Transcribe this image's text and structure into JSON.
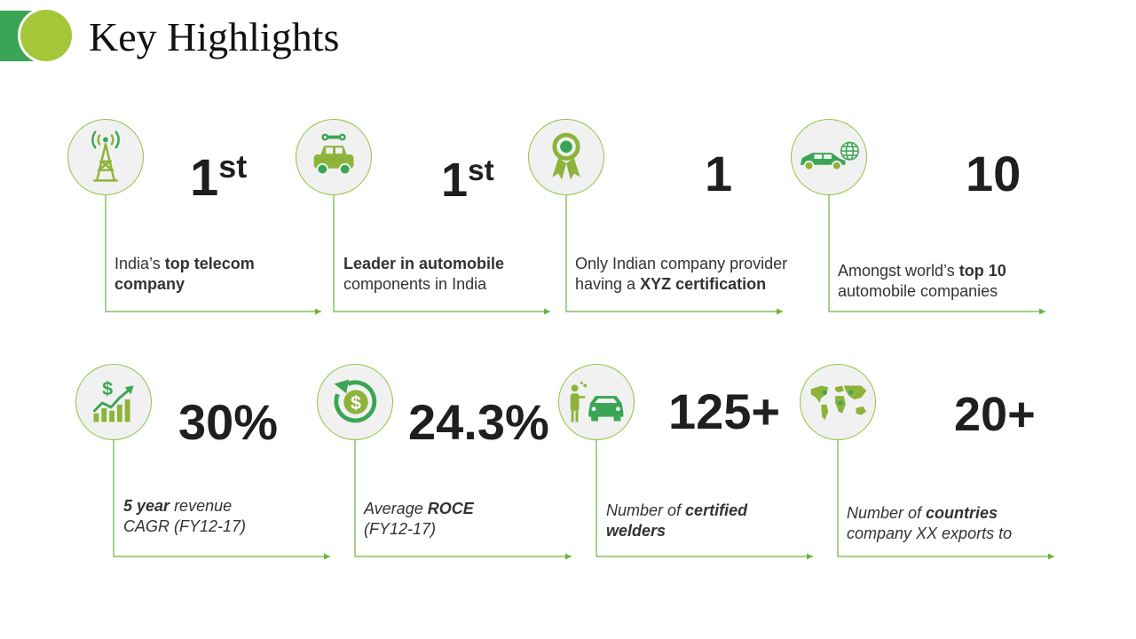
{
  "title": "Key Highlights",
  "colors": {
    "accent_dark": "#3aa655",
    "accent_light": "#a4c639",
    "line": "#6cb33f"
  },
  "highlights": [
    {
      "value": "1",
      "suffix": "st",
      "icon": "telecom-tower-icon",
      "pre": "India’s ",
      "bold": "top telecom",
      "post": "",
      "line2_bold": "company",
      "line2": ""
    },
    {
      "value": "1",
      "suffix": "st",
      "icon": "car-repair-icon",
      "pre": "",
      "bold": "Leader in automobile",
      "post": "",
      "line2_bold": "",
      "line2": "components in India"
    },
    {
      "value": "1",
      "suffix": "",
      "icon": "award-ribbon-icon",
      "pre": "Only Indian company provider",
      "bold": "",
      "post": "",
      "line2_pre": "having a ",
      "line2_bold": "XYZ certification",
      "line2": ""
    },
    {
      "value": "10",
      "suffix": "",
      "icon": "car-globe-icon",
      "pre": "Amongst world’s ",
      "bold": "top 10",
      "post": "",
      "line2_bold": "",
      "line2": "automobile companies"
    },
    {
      "value": "30%",
      "suffix": "",
      "icon": "dollar-growth-chart-icon",
      "pre": "",
      "bold": "5 year",
      "post": " revenue",
      "line2_bold": "",
      "line2": "CAGR (FY12-17)"
    },
    {
      "value": "24.3%",
      "suffix": "",
      "icon": "dollar-cycle-icon",
      "pre": "Average ",
      "bold": "ROCE",
      "post": "",
      "line2_bold": "",
      "line2": "(FY12-17)"
    },
    {
      "value": "125+",
      "suffix": "",
      "icon": "welder-car-icon",
      "pre": "Number of ",
      "bold": "certified",
      "post": "",
      "line2_bold": "welders",
      "line2": ""
    },
    {
      "value": "20+",
      "suffix": "",
      "icon": "world-map-icon",
      "pre": "Number of ",
      "bold": "countries",
      "post": "",
      "line2_bold": "",
      "line2": "company XX exports to"
    }
  ]
}
